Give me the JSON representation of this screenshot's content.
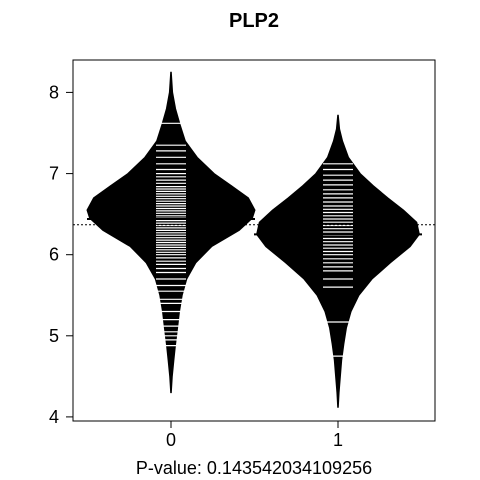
{
  "chart_data": {
    "type": "beanplot",
    "title": "PLP2",
    "xlabel": "P-value: 0.143542034109256",
    "ylabel": "",
    "categories": [
      "0",
      "1"
    ],
    "x_ticks": [
      "0",
      "1"
    ],
    "y_ticks": [
      "4",
      "5",
      "6",
      "7",
      "8"
    ],
    "ylim": [
      3.95,
      8.4
    ],
    "overall_mean": 6.37,
    "grid": false,
    "legend": "none",
    "colors": {
      "bean_fill": "#000000",
      "data_lines": "#ffffff",
      "axis": "#000000",
      "background": "#ffffff"
    },
    "groups": [
      {
        "category": "0",
        "mean": 6.44,
        "range": [
          4.3,
          8.25
        ],
        "density": [
          [
            4.3,
            0.002
          ],
          [
            4.5,
            0.01
          ],
          [
            4.7,
            0.022
          ],
          [
            4.9,
            0.035
          ],
          [
            5.1,
            0.05
          ],
          [
            5.3,
            0.065
          ],
          [
            5.5,
            0.085
          ],
          [
            5.7,
            0.12
          ],
          [
            5.9,
            0.19
          ],
          [
            6.1,
            0.31
          ],
          [
            6.3,
            0.52
          ],
          [
            6.45,
            0.62
          ],
          [
            6.55,
            0.64
          ],
          [
            6.7,
            0.59
          ],
          [
            6.85,
            0.46
          ],
          [
            7.0,
            0.33
          ],
          [
            7.2,
            0.2
          ],
          [
            7.4,
            0.11
          ],
          [
            7.6,
            0.07
          ],
          [
            7.8,
            0.035
          ],
          [
            8.0,
            0.012
          ],
          [
            8.25,
            0.002
          ]
        ],
        "observations": [
          4.88,
          4.95,
          5.0,
          5.05,
          5.12,
          5.2,
          5.3,
          5.4,
          5.45,
          5.55,
          5.62,
          5.7,
          5.78,
          5.83,
          5.88,
          5.92,
          5.96,
          6.0,
          6.03,
          6.06,
          6.09,
          6.12,
          6.15,
          6.18,
          6.21,
          6.24,
          6.27,
          6.3,
          6.33,
          6.36,
          6.39,
          6.42,
          6.45,
          6.48,
          6.51,
          6.54,
          6.57,
          6.6,
          6.63,
          6.66,
          6.69,
          6.72,
          6.75,
          6.78,
          6.81,
          6.84,
          6.88,
          6.92,
          6.96,
          7.0,
          7.05,
          7.12,
          7.2,
          7.28,
          7.35,
          7.62
        ]
      },
      {
        "category": "1",
        "mean": 6.25,
        "range": [
          4.12,
          7.72
        ],
        "density": [
          [
            4.12,
            0.002
          ],
          [
            4.3,
            0.008
          ],
          [
            4.5,
            0.018
          ],
          [
            4.7,
            0.028
          ],
          [
            4.9,
            0.045
          ],
          [
            5.1,
            0.065
          ],
          [
            5.3,
            0.1
          ],
          [
            5.5,
            0.16
          ],
          [
            5.7,
            0.26
          ],
          [
            5.9,
            0.4
          ],
          [
            6.1,
            0.55
          ],
          [
            6.25,
            0.62
          ],
          [
            6.4,
            0.6
          ],
          [
            6.55,
            0.5
          ],
          [
            6.7,
            0.38
          ],
          [
            6.85,
            0.27
          ],
          [
            7.0,
            0.17
          ],
          [
            7.2,
            0.08
          ],
          [
            7.4,
            0.035
          ],
          [
            7.55,
            0.012
          ],
          [
            7.72,
            0.002
          ]
        ],
        "observations": [
          4.75,
          5.17,
          5.6,
          5.7,
          5.8,
          5.85,
          5.9,
          5.95,
          6.0,
          6.04,
          6.08,
          6.12,
          6.16,
          6.2,
          6.24,
          6.28,
          6.32,
          6.36,
          6.4,
          6.44,
          6.48,
          6.52,
          6.56,
          6.6,
          6.65,
          6.7,
          6.75,
          6.8,
          6.86,
          6.92,
          6.98,
          7.05,
          7.12
        ]
      }
    ]
  }
}
